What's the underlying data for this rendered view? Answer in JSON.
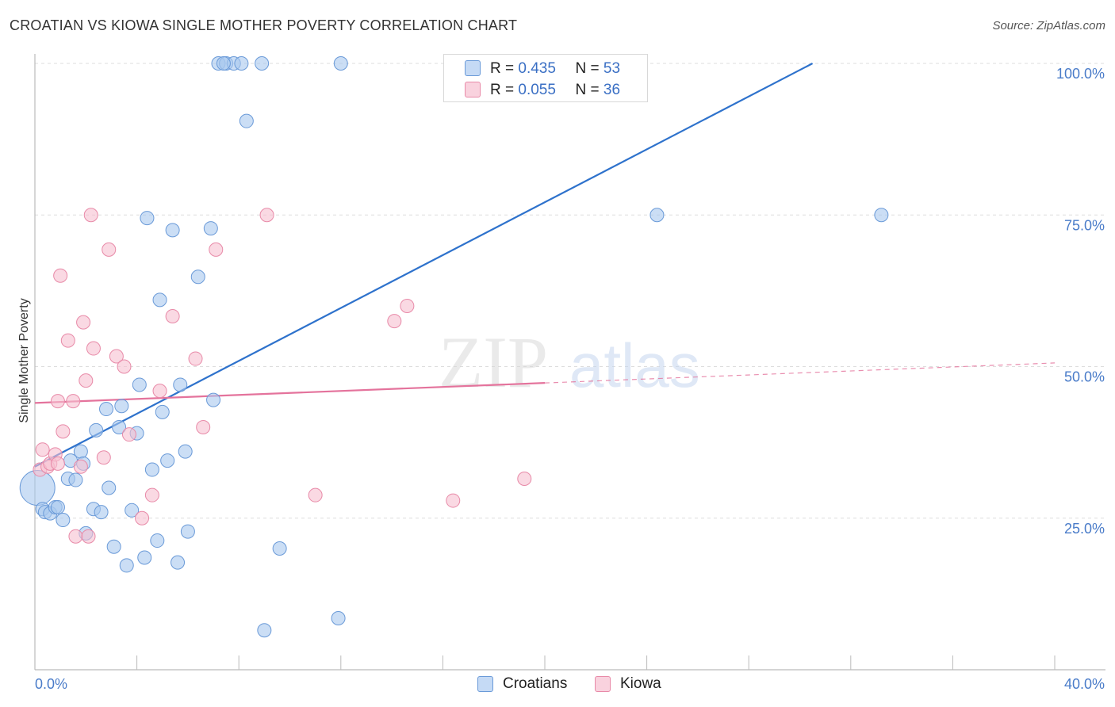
{
  "title": "CROATIAN VS KIOWA SINGLE MOTHER POVERTY CORRELATION CHART",
  "source": "Source: ZipAtlas.com",
  "colors": {
    "blue_fill": "#a9c8ef",
    "blue_stroke": "#6a9ad8",
    "blue_line": "#2e72cc",
    "pink_fill": "#f6bfd0",
    "pink_stroke": "#e88aa8",
    "pink_line": "#e4739c",
    "grid": "#dddddd",
    "tick_text": "#4a7cc9"
  },
  "stats": {
    "croatians": {
      "r_label": "R =",
      "r_value": "0.435",
      "n_label": "N =",
      "n_value": "53"
    },
    "kiowa": {
      "r_label": "R =",
      "r_value": "0.055",
      "n_label": "N =",
      "n_value": "36"
    }
  },
  "legend": {
    "croatians": "Croatians",
    "kiowa": "Kiowa"
  },
  "watermark": {
    "zip": "ZIP",
    "atlas": "atlas"
  },
  "chart_data": {
    "type": "scatter",
    "title": "CROATIAN VS KIOWA SINGLE MOTHER POVERTY CORRELATION CHART",
    "xlabel": "",
    "ylabel": "Single Mother Poverty",
    "xlim": [
      0,
      40
    ],
    "ylim": [
      0,
      100
    ],
    "x_ticks": [
      {
        "value": 0,
        "label": "0.0%"
      },
      {
        "value": 40,
        "label": "40.0%"
      }
    ],
    "y_ticks": [
      {
        "value": 25,
        "label": "25.0%"
      },
      {
        "value": 50,
        "label": "50.0%"
      },
      {
        "value": 75,
        "label": "75.0%"
      },
      {
        "value": 100,
        "label": "100.0%"
      }
    ],
    "legend_position": "bottom-center",
    "grid": true,
    "series": [
      {
        "name": "Croatians",
        "color": "#a9c8ef",
        "points": [
          [
            0.1,
            30.0
          ],
          [
            0.3,
            26.5
          ],
          [
            0.4,
            26.0
          ],
          [
            0.6,
            25.8
          ],
          [
            0.8,
            26.8
          ],
          [
            0.9,
            26.8
          ],
          [
            1.1,
            24.7
          ],
          [
            1.3,
            31.5
          ],
          [
            1.4,
            34.5
          ],
          [
            1.6,
            31.3
          ],
          [
            1.8,
            36.0
          ],
          [
            1.9,
            34.0
          ],
          [
            2.0,
            22.5
          ],
          [
            2.3,
            26.5
          ],
          [
            2.4,
            39.5
          ],
          [
            2.6,
            26.0
          ],
          [
            2.8,
            43.0
          ],
          [
            2.9,
            30.0
          ],
          [
            3.1,
            20.3
          ],
          [
            3.3,
            40.0
          ],
          [
            3.4,
            43.5
          ],
          [
            3.6,
            17.2
          ],
          [
            3.8,
            26.3
          ],
          [
            4.0,
            39.0
          ],
          [
            4.1,
            47.0
          ],
          [
            4.3,
            18.5
          ],
          [
            4.4,
            74.5
          ],
          [
            4.6,
            33.0
          ],
          [
            4.8,
            21.3
          ],
          [
            4.9,
            61.0
          ],
          [
            5.0,
            42.5
          ],
          [
            5.2,
            34.5
          ],
          [
            5.4,
            72.5
          ],
          [
            5.6,
            17.7
          ],
          [
            5.7,
            47.0
          ],
          [
            5.9,
            36.0
          ],
          [
            6.0,
            22.8
          ],
          [
            6.4,
            64.8
          ],
          [
            6.9,
            72.8
          ],
          [
            7.0,
            44.5
          ],
          [
            7.2,
            100.0
          ],
          [
            7.5,
            100.0
          ],
          [
            7.8,
            100.0
          ],
          [
            8.1,
            100.0
          ],
          [
            8.3,
            90.5
          ],
          [
            8.9,
            100.0
          ],
          [
            9.0,
            6.5
          ],
          [
            9.6,
            20.0
          ],
          [
            11.9,
            8.5
          ],
          [
            12.0,
            100.0
          ],
          [
            24.4,
            75.0
          ],
          [
            33.2,
            75.0
          ],
          [
            7.4,
            100.0
          ]
        ]
      },
      {
        "name": "Kiowa",
        "color": "#f6bfd0",
        "points": [
          [
            0.2,
            33.0
          ],
          [
            0.3,
            36.3
          ],
          [
            0.5,
            33.5
          ],
          [
            0.6,
            34.0
          ],
          [
            0.8,
            35.5
          ],
          [
            0.9,
            34.0
          ],
          [
            1.0,
            65.0
          ],
          [
            1.1,
            39.3
          ],
          [
            1.3,
            54.3
          ],
          [
            1.5,
            44.3
          ],
          [
            1.6,
            22.0
          ],
          [
            1.8,
            33.5
          ],
          [
            1.9,
            57.3
          ],
          [
            2.0,
            47.7
          ],
          [
            2.1,
            22.0
          ],
          [
            2.2,
            75.0
          ],
          [
            2.3,
            53.0
          ],
          [
            2.7,
            35.0
          ],
          [
            2.9,
            69.3
          ],
          [
            3.2,
            51.7
          ],
          [
            3.5,
            50.0
          ],
          [
            3.7,
            38.8
          ],
          [
            4.2,
            25.0
          ],
          [
            4.6,
            28.8
          ],
          [
            4.9,
            46.0
          ],
          [
            5.4,
            58.3
          ],
          [
            6.3,
            51.3
          ],
          [
            6.6,
            40.0
          ],
          [
            7.1,
            69.3
          ],
          [
            9.1,
            75.0
          ],
          [
            11.0,
            28.8
          ],
          [
            14.1,
            57.5
          ],
          [
            14.6,
            60.0
          ],
          [
            16.4,
            27.9
          ],
          [
            19.2,
            31.5
          ],
          [
            0.9,
            44.3
          ]
        ]
      }
    ],
    "trendlines": [
      {
        "series": "Croatians",
        "from": [
          0,
          33.5
        ],
        "to": [
          30.5,
          100.0
        ]
      },
      {
        "series": "Kiowa",
        "from": [
          0,
          44.0
        ],
        "to": [
          20,
          47.3
        ],
        "dashed_to": [
          40,
          50.6
        ]
      }
    ]
  }
}
